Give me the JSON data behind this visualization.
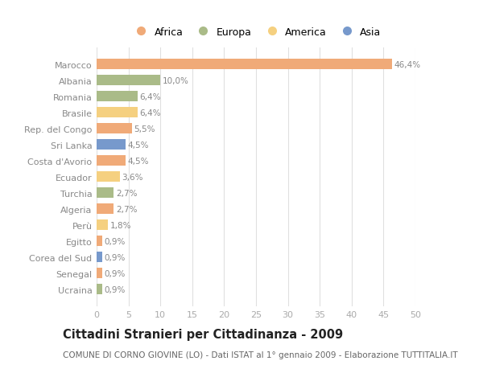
{
  "countries": [
    "Marocco",
    "Albania",
    "Romania",
    "Brasile",
    "Rep. del Congo",
    "Sri Lanka",
    "Costa d'Avorio",
    "Ecuador",
    "Turchia",
    "Algeria",
    "Perù",
    "Egitto",
    "Corea del Sud",
    "Senegal",
    "Ucraina"
  ],
  "values": [
    46.4,
    10.0,
    6.4,
    6.4,
    5.5,
    4.5,
    4.5,
    3.6,
    2.7,
    2.7,
    1.8,
    0.9,
    0.9,
    0.9,
    0.9
  ],
  "labels": [
    "46,4%",
    "10,0%",
    "6,4%",
    "6,4%",
    "5,5%",
    "4,5%",
    "4,5%",
    "3,6%",
    "2,7%",
    "2,7%",
    "1,8%",
    "0,9%",
    "0,9%",
    "0,9%",
    "0,9%"
  ],
  "continents": [
    "Africa",
    "Europa",
    "Europa",
    "America",
    "Africa",
    "Asia",
    "Africa",
    "America",
    "Europa",
    "Africa",
    "America",
    "Africa",
    "Asia",
    "Africa",
    "Europa"
  ],
  "continent_colors": {
    "Africa": "#F0AA78",
    "Europa": "#AABB88",
    "America": "#F5D080",
    "Asia": "#7799CC"
  },
  "legend_order": [
    "Africa",
    "Europa",
    "America",
    "Asia"
  ],
  "title": "Cittadini Stranieri per Cittadinanza - 2009",
  "subtitle": "COMUNE DI CORNO GIOVINE (LO) - Dati ISTAT al 1° gennaio 2009 - Elaborazione TUTTITALIA.IT",
  "xlim": [
    0,
    50
  ],
  "xticks": [
    0,
    5,
    10,
    15,
    20,
    25,
    30,
    35,
    40,
    45,
    50
  ],
  "bg_color": "#FFFFFF",
  "grid_color": "#E0E0E0",
  "bar_height": 0.65,
  "label_fontsize": 7.5,
  "ytick_fontsize": 8.0,
  "xtick_fontsize": 8.0,
  "title_fontsize": 10.5,
  "subtitle_fontsize": 7.5,
  "legend_fontsize": 9.0,
  "value_color": "#888888",
  "ytick_color": "#888888",
  "xtick_color": "#aaaaaa"
}
